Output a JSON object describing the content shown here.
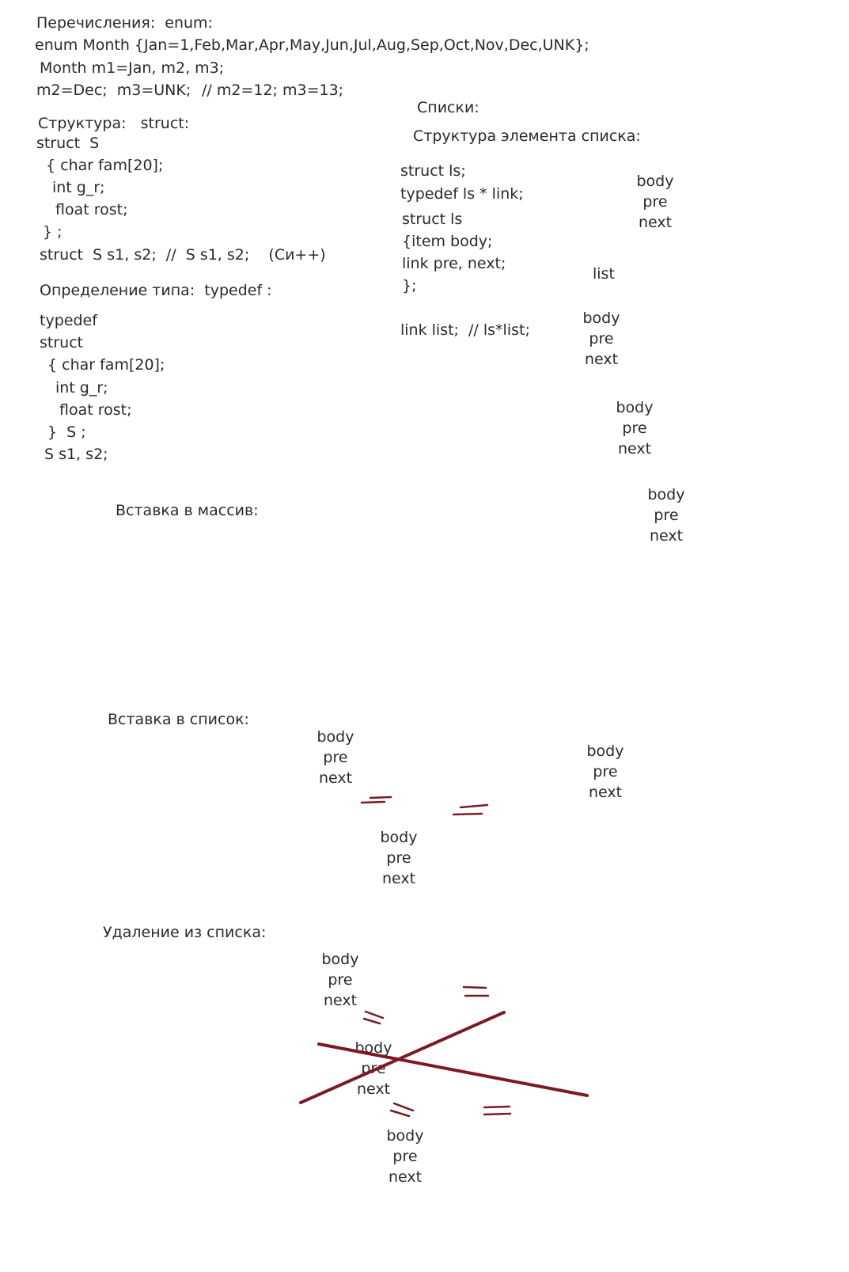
{
  "enum_section": {
    "heading": "Перечисления:  enum:",
    "line1": "enum Month {Jan=1,Feb,Mar,Apr,May,Jun,Jul,Aug,Sep,Oct,Nov,Dec,UNK};",
    "line2": "Month m1=Jan, m2, m3;",
    "line3": "m2=Dec;  m3=UNK;",
    "comment": "// m2=12; m3=13;"
  },
  "struct_section": {
    "heading": "Структура:   struct:",
    "code": [
      "struct  S",
      "{ char fam[20];",
      "int g_r;",
      "float rost;",
      "} ;",
      "struct  S s1, s2;  //  S s1, s2;    (Си++)"
    ]
  },
  "typedef_section": {
    "heading": "Определение типа:  typedef :",
    "code": [
      "typedef",
      "struct",
      "{ char fam[20];",
      "int g_r;",
      "float rost;",
      "}  S ;",
      "S s1, s2;"
    ]
  },
  "lists_section": {
    "heading": "Списки:",
    "subheading": "Структура элемента списка:",
    "code": [
      "struct ls;",
      "typedef ls * link;",
      "struct ls",
      "{item body;",
      "link pre, next;",
      "};",
      "link list;  // ls*list;"
    ],
    "list_label": "list"
  },
  "array_insert_heading": "Вставка в массив:",
  "list_insert_heading": "Вставка в список:",
  "list_delete_heading": "Удаление из списка:",
  "node": {
    "body": "body",
    "pre": "pre",
    "next": "next"
  },
  "colors": {
    "text": "#2a2a2a",
    "marks": "#7b1a25",
    "background": "#ffffff"
  }
}
